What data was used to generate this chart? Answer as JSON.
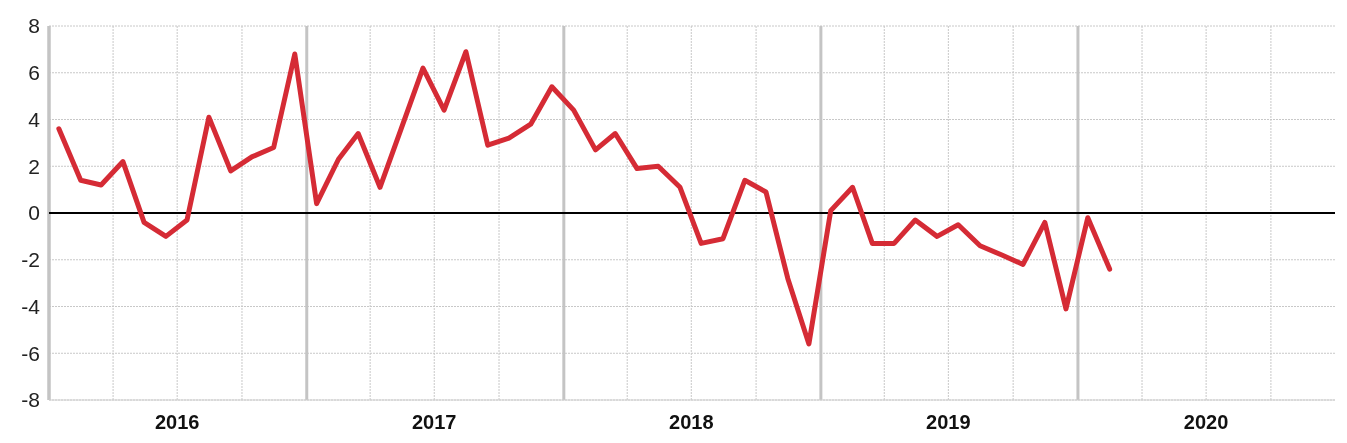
{
  "chart_data": {
    "type": "line",
    "x": [
      "2016-01-15",
      "2016-02-15",
      "2016-03-15",
      "2016-04-15",
      "2016-05-15",
      "2016-06-15",
      "2016-07-15",
      "2016-08-15",
      "2016-09-15",
      "2016-10-15",
      "2016-11-15",
      "2016-12-15",
      "2017-01-15",
      "2017-02-15",
      "2017-03-15",
      "2017-04-15",
      "2017-05-15",
      "2017-06-15",
      "2017-07-15",
      "2017-08-15",
      "2017-09-15",
      "2017-10-15",
      "2017-11-15",
      "2017-12-15",
      "2018-01-15",
      "2018-02-15",
      "2018-03-15",
      "2018-04-15",
      "2018-05-15",
      "2018-06-15",
      "2018-07-15",
      "2018-08-15",
      "2018-09-15",
      "2018-10-15",
      "2018-11-15",
      "2018-12-15",
      "2019-01-15",
      "2019-02-15",
      "2019-03-15",
      "2019-04-15",
      "2019-05-15",
      "2019-06-15",
      "2019-07-15",
      "2019-08-15",
      "2019-09-15",
      "2019-10-15",
      "2019-11-15",
      "2019-12-15",
      "2020-01-15",
      "2020-02-15"
    ],
    "series": [
      {
        "color": "#d52b35",
        "values": [
          3.6,
          1.4,
          1.2,
          2.2,
          -0.4,
          -1.0,
          -0.3,
          4.1,
          1.8,
          2.4,
          2.8,
          6.8,
          0.4,
          2.3,
          3.4,
          1.1,
          3.6,
          6.2,
          4.4,
          6.9,
          2.9,
          3.2,
          3.8,
          5.4,
          4.4,
          2.7,
          3.4,
          1.9,
          2.0,
          1.1,
          -1.3,
          -1.1,
          1.4,
          0.9,
          -2.8,
          -5.6,
          0.1,
          1.1,
          -1.3,
          -1.3,
          -0.3,
          -1.0,
          -0.5,
          -1.4,
          -1.8,
          -2.2,
          -0.4,
          -4.1,
          -0.2,
          -2.4
        ]
      }
    ],
    "xlim": [
      "2016-01-01",
      "2020-12-31"
    ],
    "xticks": [
      {
        "value": "2016-01-01",
        "label": null
      },
      {
        "value": "2016-04-01",
        "label": null
      },
      {
        "value": "2016-07-01",
        "label": "2016"
      },
      {
        "value": "2016-10-01",
        "label": null
      },
      {
        "value": "2017-01-01",
        "label": null
      },
      {
        "value": "2017-04-01",
        "label": null
      },
      {
        "value": "2017-07-01",
        "label": "2017"
      },
      {
        "value": "2017-10-01",
        "label": null
      },
      {
        "value": "2018-01-01",
        "label": null
      },
      {
        "value": "2018-04-01",
        "label": null
      },
      {
        "value": "2018-07-01",
        "label": "2018"
      },
      {
        "value": "2018-10-01",
        "label": null
      },
      {
        "value": "2019-01-01",
        "label": null
      },
      {
        "value": "2019-04-01",
        "label": null
      },
      {
        "value": "2019-07-01",
        "label": "2019"
      },
      {
        "value": "2019-10-01",
        "label": null
      },
      {
        "value": "2020-01-01",
        "label": null
      },
      {
        "value": "2020-04-01",
        "label": null
      },
      {
        "value": "2020-07-01",
        "label": "2020"
      },
      {
        "value": "2020-10-01",
        "label": null
      }
    ],
    "ylim": [
      -8,
      8
    ],
    "yticks": [
      -8,
      -6,
      -4,
      -2,
      0,
      2,
      4,
      6,
      8
    ],
    "grid": true,
    "marker": "none",
    "line_style": "solid",
    "ref_lines": [
      {
        "axis": "y",
        "value": 0,
        "label": null,
        "color": "#000000"
      }
    ]
  }
}
